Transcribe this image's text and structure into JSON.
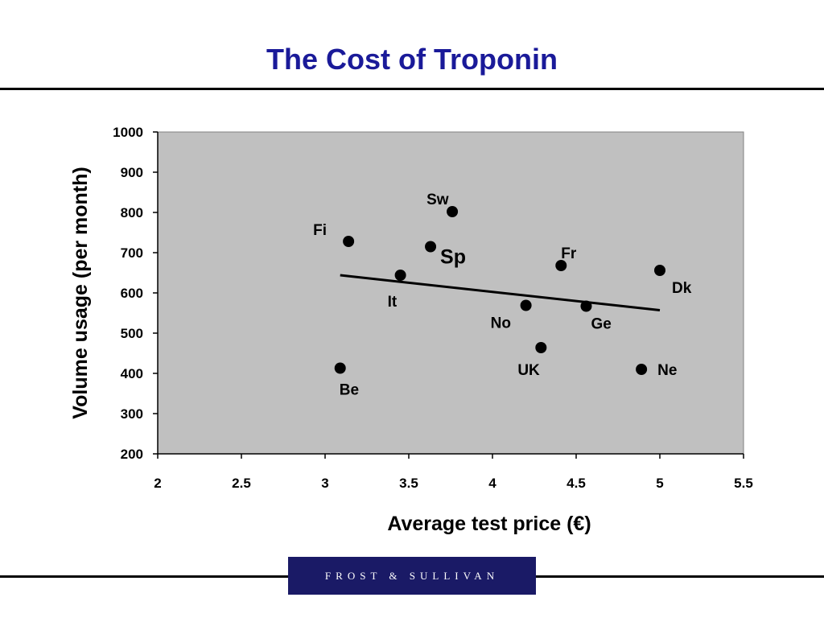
{
  "page": {
    "title": "The Cost of Troponin",
    "logo_text": "FROST & SULLIVAN",
    "colors": {
      "title": "#1a1a99",
      "logo_bg": "#1a1a66",
      "plot_bg": "#c0c0c0"
    }
  },
  "chart_data": {
    "type": "scatter",
    "title": "",
    "xlabel": "Average test price (€)",
    "ylabel": "Volume usage (per month)",
    "xlim": [
      2,
      5.5
    ],
    "ylim": [
      200,
      1000
    ],
    "xticks": [
      2,
      2.5,
      3,
      3.5,
      4,
      4.5,
      5,
      5.5
    ],
    "yticks": [
      200,
      300,
      400,
      500,
      600,
      700,
      800,
      900,
      1000
    ],
    "grid": false,
    "legend": "none",
    "points": [
      {
        "label": "Sw",
        "x": 3.76,
        "y": 802,
        "label_pos": "above-left"
      },
      {
        "label": "Fi",
        "x": 3.14,
        "y": 728,
        "label_pos": "above-left"
      },
      {
        "label": "Sp",
        "x": 3.63,
        "y": 715,
        "label_pos": "right",
        "emphasis": true
      },
      {
        "label": "Fr",
        "x": 4.41,
        "y": 668,
        "label_pos": "above-right"
      },
      {
        "label": "Dk",
        "x": 5.0,
        "y": 656,
        "label_pos": "below-right"
      },
      {
        "label": "It",
        "x": 3.45,
        "y": 644,
        "label_pos": "below-left"
      },
      {
        "label": "No",
        "x": 4.2,
        "y": 569,
        "label_pos": "below-left"
      },
      {
        "label": "Ge",
        "x": 4.56,
        "y": 567,
        "label_pos": "below-right"
      },
      {
        "label": "UK",
        "x": 4.29,
        "y": 464,
        "label_pos": "below-left"
      },
      {
        "label": "Be",
        "x": 3.09,
        "y": 413,
        "label_pos": "below-right"
      },
      {
        "label": "Ne",
        "x": 4.89,
        "y": 410,
        "label_pos": "right"
      }
    ],
    "trendline": {
      "x": [
        3.09,
        5.0
      ],
      "y": [
        644,
        557
      ]
    }
  }
}
